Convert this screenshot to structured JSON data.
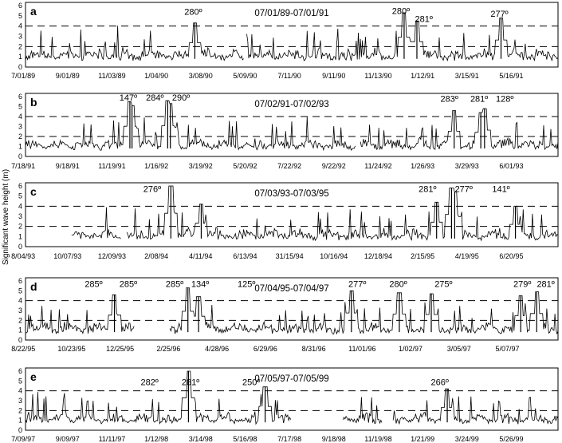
{
  "figure": {
    "ylabel": "Significant wave height (m)"
  },
  "chart_data": [
    {
      "type": "line",
      "panel": "a",
      "period": "07/01/89-07/01/91",
      "ylim": [
        0,
        6
      ],
      "yticks": [
        0,
        1,
        2,
        3,
        4,
        5,
        6
      ],
      "reference_lines": [
        2,
        4
      ],
      "xtick_labels": [
        "7/01/89",
        "9/01/89",
        "11/03/89",
        "1/04/90",
        "3/08/90",
        "5/09/90",
        "7/11/90",
        "9/11/90",
        "11/13/90",
        "1/12/91",
        "3/15/91",
        "5/16/91"
      ],
      "annotations": [
        {
          "text": "280º",
          "x": 0.315,
          "y": 5.1
        },
        {
          "text": "280º",
          "x": 0.705,
          "y": 5.2
        },
        {
          "text": "281º",
          "x": 0.748,
          "y": 4.4
        },
        {
          "text": "277º",
          "x": 0.89,
          "y": 4.9
        }
      ],
      "peaks": [
        {
          "x": 0.318,
          "y": 4.3
        },
        {
          "x": 0.711,
          "y": 5.3
        },
        {
          "x": 0.735,
          "y": 4.5
        },
        {
          "x": 0.893,
          "y": 4.8
        }
      ],
      "gaps": [
        [
          0.41,
          0.415
        ]
      ]
    },
    {
      "type": "line",
      "panel": "b",
      "period": "07/02/91-07/02/93",
      "ylim": [
        0,
        6
      ],
      "yticks": [
        0,
        1,
        2,
        3,
        4,
        5,
        6
      ],
      "reference_lines": [
        2,
        4
      ],
      "xtick_labels": [
        "7/18/91",
        "9/18/91",
        "11/19/91",
        "1/16/92",
        "3/19/92",
        "5/20/92",
        "7/22/92",
        "9/22/92",
        "11/24/92",
        "1/26/93",
        "3/29/93",
        "6/01/93"
      ],
      "annotations": [
        {
          "text": "147º",
          "x": 0.193,
          "y": 5.6
        },
        {
          "text": "284º",
          "x": 0.243,
          "y": 5.6
        },
        {
          "text": "290º",
          "x": 0.292,
          "y": 5.6
        },
        {
          "text": "283º",
          "x": 0.796,
          "y": 5.5
        },
        {
          "text": "281º",
          "x": 0.852,
          "y": 5.5
        },
        {
          "text": "128º",
          "x": 0.9,
          "y": 5.5
        }
      ],
      "peaks": [
        {
          "x": 0.196,
          "y": 5.5
        },
        {
          "x": 0.2,
          "y": 5.1
        },
        {
          "x": 0.267,
          "y": 5.6
        },
        {
          "x": 0.272,
          "y": 5.3
        },
        {
          "x": 0.805,
          "y": 4.6
        },
        {
          "x": 0.855,
          "y": 4.4
        },
        {
          "x": 0.862,
          "y": 4.8
        }
      ],
      "gaps": [
        [
          0.62,
          0.628
        ]
      ]
    },
    {
      "type": "line",
      "panel": "c",
      "period": "07/03/93-07/03/95",
      "ylim": [
        0,
        6
      ],
      "yticks": [
        0,
        1,
        2,
        3,
        4,
        5,
        6
      ],
      "reference_lines": [
        2,
        4
      ],
      "xtick_labels": [
        "8/04/93",
        "10/07/93",
        "12/09/93",
        "2/08/94",
        "4/11/94",
        "6/13/94",
        "31/15/94",
        "10/16/94",
        "12/18/94",
        "2/15/95",
        "4/19/95",
        "6/20/95"
      ],
      "annotations": [
        {
          "text": "276º",
          "x": 0.238,
          "y": 5.4
        },
        {
          "text": "281º",
          "x": 0.755,
          "y": 5.4
        },
        {
          "text": "277º",
          "x": 0.823,
          "y": 5.4
        },
        {
          "text": "141º",
          "x": 0.893,
          "y": 5.4
        }
      ],
      "peaks": [
        {
          "x": 0.273,
          "y": 6.0
        },
        {
          "x": 0.33,
          "y": 4.2
        },
        {
          "x": 0.772,
          "y": 4.4
        },
        {
          "x": 0.8,
          "y": 5.8
        },
        {
          "x": 0.806,
          "y": 5.4
        },
        {
          "x": 0.92,
          "y": 4.0
        }
      ],
      "gaps": [
        [
          0.0,
          0.085
        ],
        [
          0.18,
          0.19
        ]
      ]
    },
    {
      "type": "line",
      "panel": "d",
      "period": "07/04/95-07/04/97",
      "ylim": [
        0,
        6
      ],
      "yticks": [
        0,
        1,
        2,
        3,
        4,
        5,
        6
      ],
      "reference_lines": [
        2,
        4
      ],
      "xtick_labels": [
        "8/22/95",
        "10/23/95",
        "12/25/95",
        "2/25/96",
        "4/28/96",
        "6/29/96",
        "8/31/96",
        "11/01/96",
        "1/02/97",
        "3/05/97",
        "5/07/97"
      ],
      "annotations": [
        {
          "text": "285º",
          "x": 0.128,
          "y": 5.4
        },
        {
          "text": "285º",
          "x": 0.193,
          "y": 5.4
        },
        {
          "text": "285º",
          "x": 0.28,
          "y": 5.4
        },
        {
          "text": "134º",
          "x": 0.328,
          "y": 5.4
        },
        {
          "text": "125º",
          "x": 0.415,
          "y": 5.4
        },
        {
          "text": "277º",
          "x": 0.623,
          "y": 5.4
        },
        {
          "text": "280º",
          "x": 0.7,
          "y": 5.4
        },
        {
          "text": "275º",
          "x": 0.785,
          "y": 5.4
        },
        {
          "text": "279º",
          "x": 0.933,
          "y": 5.4
        },
        {
          "text": "281º",
          "x": 0.977,
          "y": 5.4
        }
      ],
      "peaks": [
        {
          "x": 0.167,
          "y": 4.6
        },
        {
          "x": 0.305,
          "y": 5.3
        },
        {
          "x": 0.325,
          "y": 4.4
        },
        {
          "x": 0.612,
          "y": 5.0
        },
        {
          "x": 0.702,
          "y": 4.8
        },
        {
          "x": 0.762,
          "y": 4.7
        },
        {
          "x": 0.93,
          "y": 4.5
        },
        {
          "x": 0.96,
          "y": 4.9
        }
      ],
      "gaps": [
        [
          0.205,
          0.27
        ]
      ]
    },
    {
      "type": "line",
      "panel": "e",
      "period": "07/05/97-07/05/99",
      "ylim": [
        0,
        6
      ],
      "yticks": [
        0,
        1,
        2,
        3,
        4,
        5,
        6
      ],
      "reference_lines": [
        2,
        4
      ],
      "xtick_labels": [
        "7/09/97",
        "9/09/97",
        "11/11/97",
        "1/12/98",
        "3/14/98",
        "5/16/98",
        "7/17/98",
        "9/18/98",
        "11/19/98",
        "1/21/99",
        "3/24/99",
        "5/26/99"
      ],
      "annotations": [
        {
          "text": "282º",
          "x": 0.233,
          "y": 4.6
        },
        {
          "text": "281º",
          "x": 0.31,
          "y": 4.6
        },
        {
          "text": "250º",
          "x": 0.424,
          "y": 4.6
        },
        {
          "text": "266º",
          "x": 0.778,
          "y": 4.6
        }
      ],
      "peaks": [
        {
          "x": 0.306,
          "y": 6.0
        },
        {
          "x": 0.45,
          "y": 4.4
        },
        {
          "x": 0.792,
          "y": 4.2
        }
      ],
      "gaps": [
        [
          0.5,
          0.595
        ],
        [
          0.67,
          0.69
        ]
      ]
    }
  ]
}
